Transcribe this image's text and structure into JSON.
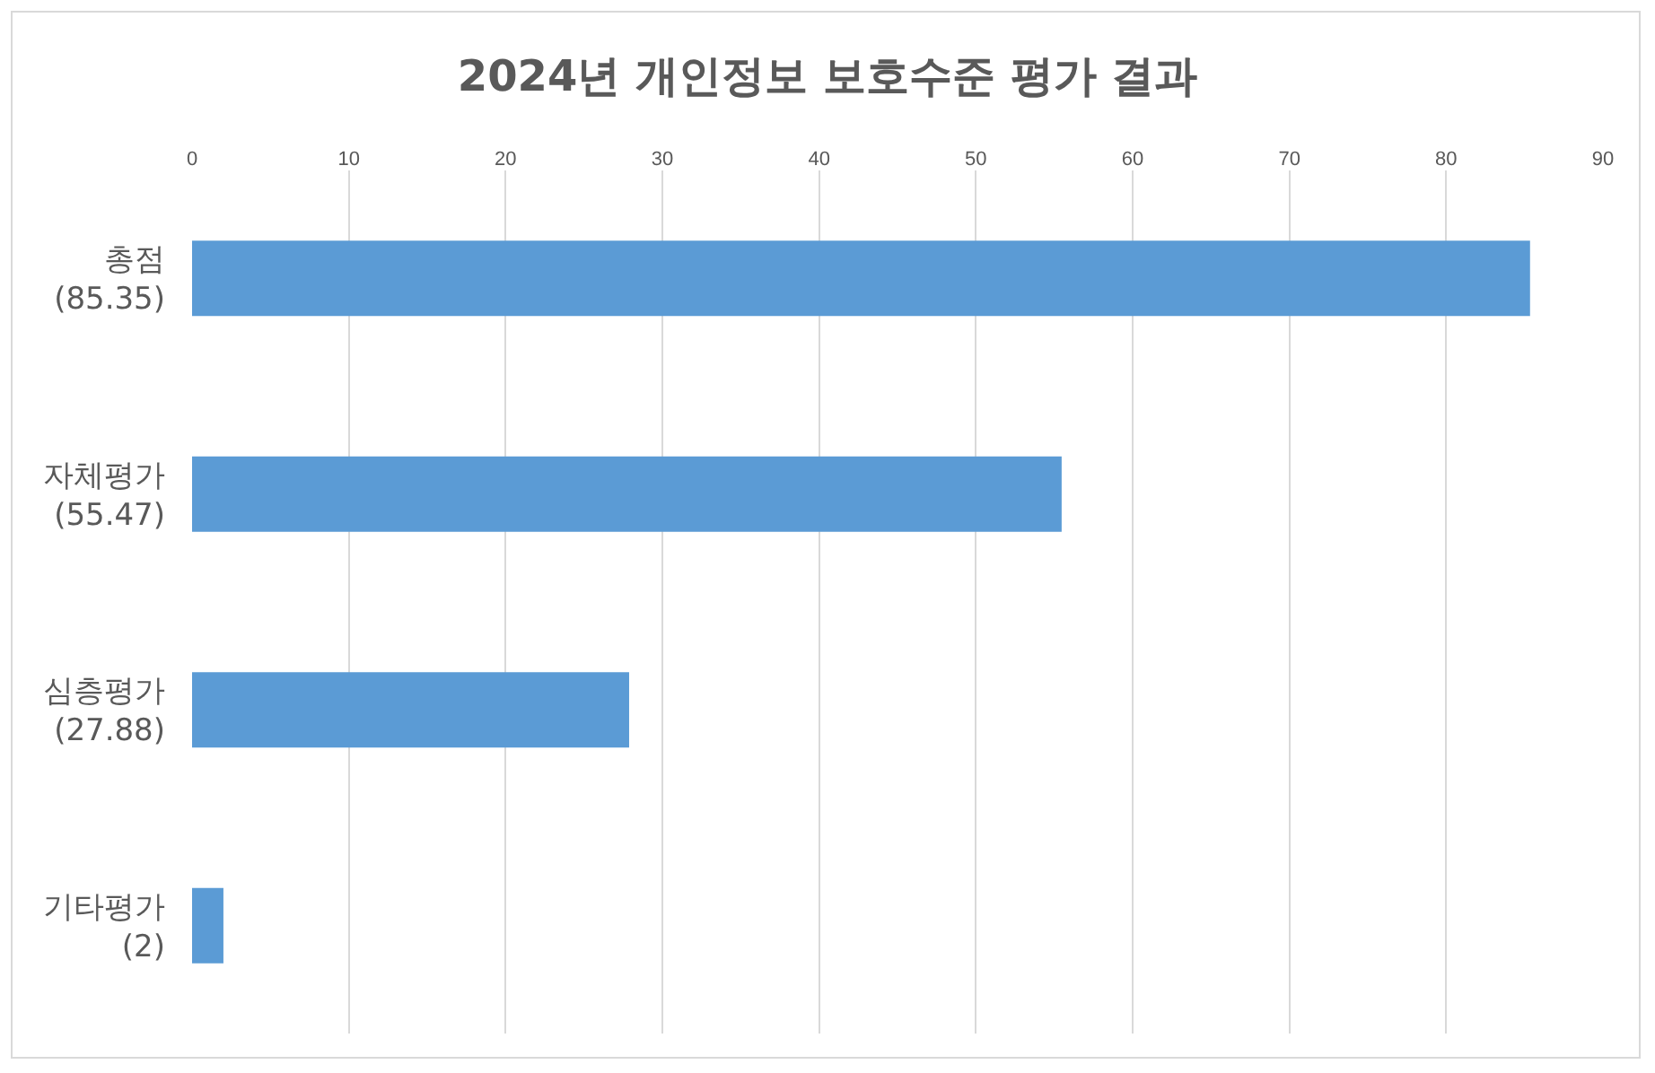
{
  "chart_data": {
    "type": "bar",
    "orientation": "horizontal",
    "title": "2024년 개인정보 보호수준 평가 결과",
    "categories": [
      "총점\n(85.35)",
      "자체평가\n(55.47)",
      "심층평가\n(27.88)",
      "기타평가\n(2)"
    ],
    "values": [
      85.35,
      55.47,
      27.88,
      2
    ],
    "color": "#5b9bd5",
    "xlim": [
      0,
      90
    ],
    "xticks": [
      0,
      10,
      20,
      30,
      40,
      50,
      60,
      70,
      80,
      90
    ],
    "grid": "x",
    "legend": false
  }
}
